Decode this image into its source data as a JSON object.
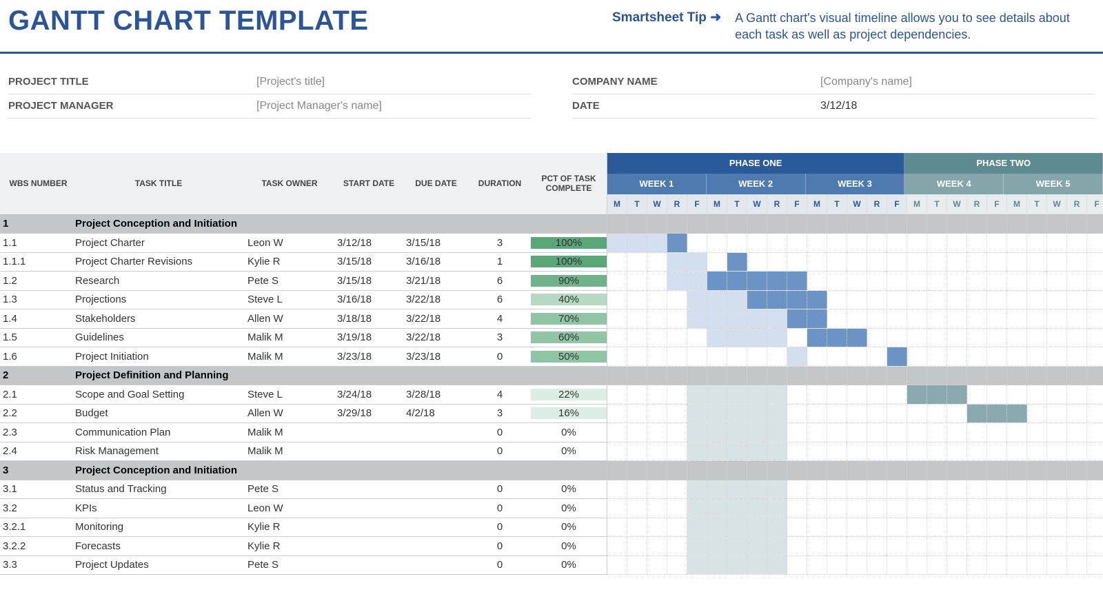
{
  "header": {
    "title": "GANTT CHART TEMPLATE",
    "tip_label": "Smartsheet Tip ➜",
    "tip_text": "A Gantt chart's visual timeline allows you to see details about each task as well as project dependencies."
  },
  "meta": {
    "left": [
      {
        "label": "PROJECT TITLE",
        "value": "[Project's title]",
        "filled": false
      },
      {
        "label": "PROJECT MANAGER",
        "value": "[Project Manager's name]",
        "filled": false
      }
    ],
    "right": [
      {
        "label": "COMPANY NAME",
        "value": "[Company's name]",
        "filled": false
      },
      {
        "label": "DATE",
        "value": "3/12/18",
        "filled": true
      }
    ]
  },
  "columns": {
    "wbs": "WBS NUMBER",
    "title": "TASK TITLE",
    "owner": "TASK OWNER",
    "start": "START DATE",
    "due": "DUE DATE",
    "dur": "DURATION",
    "pct": "PCT OF TASK COMPLETE"
  },
  "timeline": {
    "day_width": 29,
    "phases": [
      {
        "label": "PHASE ONE",
        "weeks": 3,
        "bg": "#2a5a9a",
        "week_bg": "#4f7ab0",
        "day_color": "#2a5a9a",
        "day_bg": "#e3e8ef"
      },
      {
        "label": "PHASE TWO",
        "weeks": 2,
        "bg": "#5e8a92",
        "week_bg": "#84a5aa",
        "day_color": "#5e8a92",
        "day_bg": "#e7edee"
      }
    ],
    "week_labels": [
      "WEEK 1",
      "WEEK 2",
      "WEEK 3",
      "WEEK 4",
      "WEEK 5"
    ],
    "days": [
      "M",
      "T",
      "W",
      "R",
      "F"
    ]
  },
  "pct_colors": {
    "full": "#5aa77a",
    "high": "#70b38a",
    "mid": "#8fc4a4",
    "low": "#b6d9c4",
    "vlow": "#dceee3",
    "none": "#ffffff"
  },
  "bar_colors": {
    "phase1_light": "#d3deee",
    "phase1_dark": "#6b93c6",
    "phase2_light": "#d8e3e5",
    "phase2_dark": "#8aa9ae"
  },
  "rows": [
    {
      "type": "section",
      "wbs": "1",
      "title": "Project Conception and Initiation"
    },
    {
      "type": "task",
      "wbs": "1.1",
      "title": "Project Charter",
      "owner": "Leon W",
      "start": "3/12/18",
      "due": "3/15/18",
      "dur": "3",
      "pct": 100,
      "bar_start": 0,
      "bar_len": 4,
      "accent_start": 3,
      "accent_len": 1,
      "phase": 1
    },
    {
      "type": "task",
      "wbs": "1.1.1",
      "title": "Project Charter Revisions",
      "owner": "Kylie R",
      "start": "3/15/18",
      "due": "3/16/18",
      "dur": "1",
      "pct": 100,
      "bar_start": 3,
      "bar_len": 2,
      "accent_start": 6,
      "accent_len": 1,
      "phase": 1
    },
    {
      "type": "task",
      "wbs": "1.2",
      "title": "Research",
      "owner": "Pete S",
      "start": "3/15/18",
      "due": "3/21/18",
      "dur": "6",
      "pct": 90,
      "bar_start": 3,
      "bar_len": 5,
      "accent_start": 5,
      "accent_len": 5,
      "phase": 1
    },
    {
      "type": "task",
      "wbs": "1.3",
      "title": "Projections",
      "owner": "Steve L",
      "start": "3/16/18",
      "due": "3/22/18",
      "dur": "6",
      "pct": 40,
      "bar_start": 4,
      "bar_len": 5,
      "accent_start": 7,
      "accent_len": 4,
      "phase": 1
    },
    {
      "type": "task",
      "wbs": "1.4",
      "title": "Stakeholders",
      "owner": "Allen W",
      "start": "3/18/18",
      "due": "3/22/18",
      "dur": "4",
      "pct": 70,
      "bar_start": 4,
      "bar_len": 5,
      "accent_start": 9,
      "accent_len": 2,
      "phase": 1
    },
    {
      "type": "task",
      "wbs": "1.5",
      "title": "Guidelines",
      "owner": "Malik M",
      "start": "3/19/18",
      "due": "3/22/18",
      "dur": "3",
      "pct": 60,
      "bar_start": 5,
      "bar_len": 4,
      "accent_start": 10,
      "accent_len": 3,
      "phase": 1
    },
    {
      "type": "task",
      "wbs": "1.6",
      "title": "Project Initiation",
      "owner": "Malik M",
      "start": "3/23/18",
      "due": "3/23/18",
      "dur": "0",
      "pct": 50,
      "bar_start": 9,
      "bar_len": 1,
      "accent_start": 14,
      "accent_len": 1,
      "phase": 1
    },
    {
      "type": "section",
      "wbs": "2",
      "title": "Project Definition and Planning"
    },
    {
      "type": "task",
      "wbs": "2.1",
      "title": "Scope and Goal Setting",
      "owner": "Steve L",
      "start": "3/24/18",
      "due": "3/28/18",
      "dur": "4",
      "pct": 22,
      "bar_start": 4,
      "bar_len": 5,
      "accent_start": 15,
      "accent_len": 3,
      "phase": 2
    },
    {
      "type": "task",
      "wbs": "2.2",
      "title": "Budget",
      "owner": "Allen W",
      "start": "3/29/18",
      "due": "4/2/18",
      "dur": "3",
      "pct": 16,
      "bar_start": 4,
      "bar_len": 5,
      "accent_start": 18,
      "accent_len": 3,
      "phase": 2
    },
    {
      "type": "task",
      "wbs": "2.3",
      "title": "Communication Plan",
      "owner": "Malik M",
      "start": "",
      "due": "",
      "dur": "0",
      "pct": 0,
      "bar_start": 4,
      "bar_len": 5,
      "phase": 2
    },
    {
      "type": "task",
      "wbs": "2.4",
      "title": "Risk Management",
      "owner": "Malik M",
      "start": "",
      "due": "",
      "dur": "0",
      "pct": 0,
      "bar_start": 4,
      "bar_len": 5,
      "phase": 2
    },
    {
      "type": "section",
      "wbs": "3",
      "title": "Project Conception and Initiation"
    },
    {
      "type": "task",
      "wbs": "3.1",
      "title": "Status and Tracking",
      "owner": "Pete S",
      "start": "",
      "due": "",
      "dur": "0",
      "pct": 0,
      "bar_start": 4,
      "bar_len": 5,
      "phase": 2
    },
    {
      "type": "task",
      "wbs": "3.2",
      "title": "KPIs",
      "owner": "Leon W",
      "start": "",
      "due": "",
      "dur": "0",
      "pct": 0,
      "bar_start": 4,
      "bar_len": 5,
      "phase": 2
    },
    {
      "type": "task",
      "wbs": "3.2.1",
      "title": "Monitoring",
      "owner": "Kylie R",
      "start": "",
      "due": "",
      "dur": "0",
      "pct": 0,
      "bar_start": 4,
      "bar_len": 5,
      "phase": 2
    },
    {
      "type": "task",
      "wbs": "3.2.2",
      "title": "Forecasts",
      "owner": "Kylie R",
      "start": "",
      "due": "",
      "dur": "0",
      "pct": 0,
      "bar_start": 4,
      "bar_len": 5,
      "phase": 2
    },
    {
      "type": "task",
      "wbs": "3.3",
      "title": "Project Updates",
      "owner": "Pete S",
      "start": "",
      "due": "",
      "dur": "0",
      "pct": 0,
      "bar_start": 4,
      "bar_len": 5,
      "phase": 2
    }
  ]
}
